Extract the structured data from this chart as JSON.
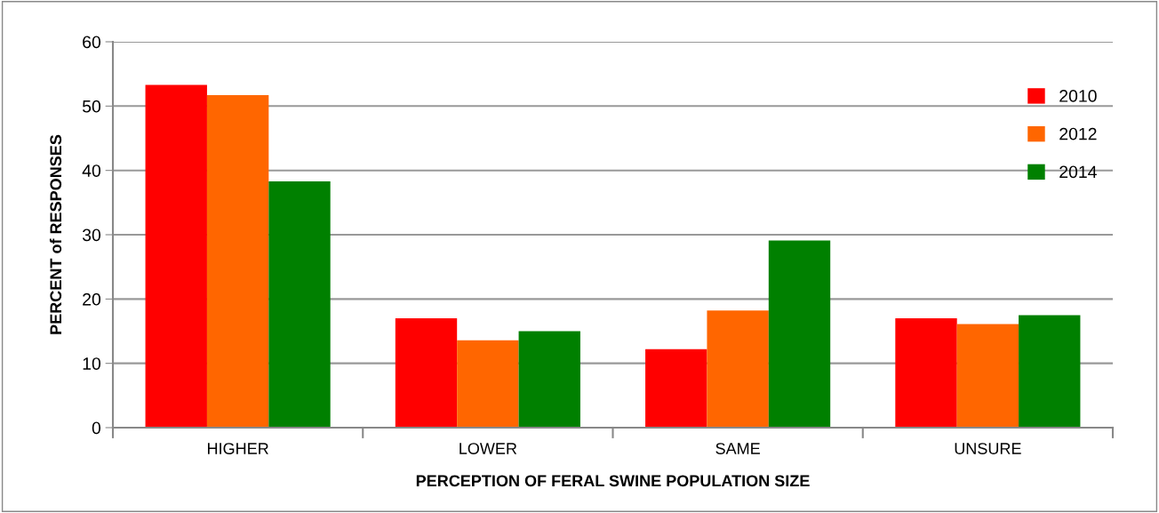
{
  "chart_data": {
    "type": "bar",
    "xlabel": "PERCEPTION OF FERAL SWINE POPULATION SIZE",
    "ylabel": "PERCENT of RESPONSES",
    "categories": [
      "HIGHER",
      "LOWER",
      "SAME",
      "UNSURE"
    ],
    "series": [
      {
        "name": "2010",
        "color": "#ff0000",
        "values": [
          53.3,
          17.0,
          12.2,
          17.0
        ]
      },
      {
        "name": "2012",
        "color": "#ff6600",
        "values": [
          51.7,
          13.6,
          18.2,
          16.1
        ]
      },
      {
        "name": "2014",
        "color": "#008000",
        "values": [
          38.3,
          15.0,
          29.1,
          17.5
        ]
      }
    ],
    "ylim": [
      0,
      60
    ],
    "yticks": [
      0,
      10,
      20,
      30,
      40,
      50,
      60
    ],
    "grid": "y",
    "legend": "top right"
  }
}
